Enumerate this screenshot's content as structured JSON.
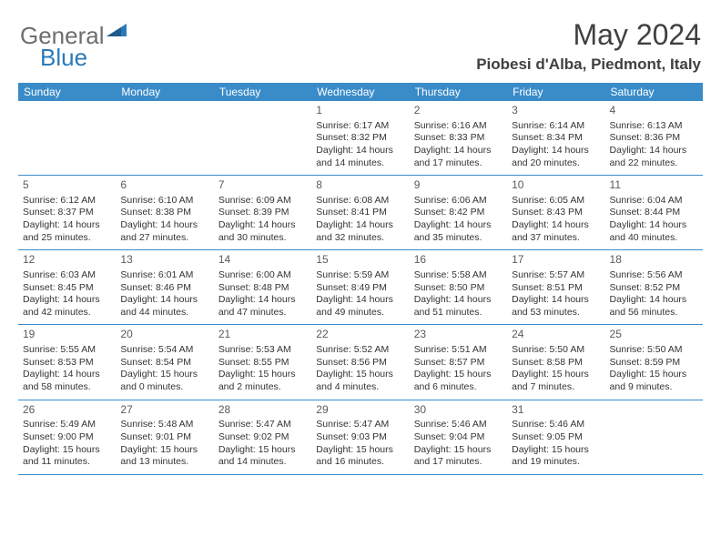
{
  "logo": {
    "part1": "General",
    "part2": "Blue"
  },
  "colors": {
    "header_bg": "#3a8cc9",
    "header_text": "#ffffff",
    "accent": "#2a7ab9",
    "gray": "#6d6e71",
    "title_color": "#404040",
    "row_border": "#3a8cc9"
  },
  "title": "May 2024",
  "location": "Piobesi d'Alba, Piedmont, Italy",
  "day_headers": [
    "Sunday",
    "Monday",
    "Tuesday",
    "Wednesday",
    "Thursday",
    "Friday",
    "Saturday"
  ],
  "weeks": [
    [
      {
        "num": "",
        "info": ""
      },
      {
        "num": "",
        "info": ""
      },
      {
        "num": "",
        "info": ""
      },
      {
        "num": "1",
        "info": "Sunrise: 6:17 AM\nSunset: 8:32 PM\nDaylight: 14 hours and 14 minutes."
      },
      {
        "num": "2",
        "info": "Sunrise: 6:16 AM\nSunset: 8:33 PM\nDaylight: 14 hours and 17 minutes."
      },
      {
        "num": "3",
        "info": "Sunrise: 6:14 AM\nSunset: 8:34 PM\nDaylight: 14 hours and 20 minutes."
      },
      {
        "num": "4",
        "info": "Sunrise: 6:13 AM\nSunset: 8:36 PM\nDaylight: 14 hours and 22 minutes."
      }
    ],
    [
      {
        "num": "5",
        "info": "Sunrise: 6:12 AM\nSunset: 8:37 PM\nDaylight: 14 hours and 25 minutes."
      },
      {
        "num": "6",
        "info": "Sunrise: 6:10 AM\nSunset: 8:38 PM\nDaylight: 14 hours and 27 minutes."
      },
      {
        "num": "7",
        "info": "Sunrise: 6:09 AM\nSunset: 8:39 PM\nDaylight: 14 hours and 30 minutes."
      },
      {
        "num": "8",
        "info": "Sunrise: 6:08 AM\nSunset: 8:41 PM\nDaylight: 14 hours and 32 minutes."
      },
      {
        "num": "9",
        "info": "Sunrise: 6:06 AM\nSunset: 8:42 PM\nDaylight: 14 hours and 35 minutes."
      },
      {
        "num": "10",
        "info": "Sunrise: 6:05 AM\nSunset: 8:43 PM\nDaylight: 14 hours and 37 minutes."
      },
      {
        "num": "11",
        "info": "Sunrise: 6:04 AM\nSunset: 8:44 PM\nDaylight: 14 hours and 40 minutes."
      }
    ],
    [
      {
        "num": "12",
        "info": "Sunrise: 6:03 AM\nSunset: 8:45 PM\nDaylight: 14 hours and 42 minutes."
      },
      {
        "num": "13",
        "info": "Sunrise: 6:01 AM\nSunset: 8:46 PM\nDaylight: 14 hours and 44 minutes."
      },
      {
        "num": "14",
        "info": "Sunrise: 6:00 AM\nSunset: 8:48 PM\nDaylight: 14 hours and 47 minutes."
      },
      {
        "num": "15",
        "info": "Sunrise: 5:59 AM\nSunset: 8:49 PM\nDaylight: 14 hours and 49 minutes."
      },
      {
        "num": "16",
        "info": "Sunrise: 5:58 AM\nSunset: 8:50 PM\nDaylight: 14 hours and 51 minutes."
      },
      {
        "num": "17",
        "info": "Sunrise: 5:57 AM\nSunset: 8:51 PM\nDaylight: 14 hours and 53 minutes."
      },
      {
        "num": "18",
        "info": "Sunrise: 5:56 AM\nSunset: 8:52 PM\nDaylight: 14 hours and 56 minutes."
      }
    ],
    [
      {
        "num": "19",
        "info": "Sunrise: 5:55 AM\nSunset: 8:53 PM\nDaylight: 14 hours and 58 minutes."
      },
      {
        "num": "20",
        "info": "Sunrise: 5:54 AM\nSunset: 8:54 PM\nDaylight: 15 hours and 0 minutes."
      },
      {
        "num": "21",
        "info": "Sunrise: 5:53 AM\nSunset: 8:55 PM\nDaylight: 15 hours and 2 minutes."
      },
      {
        "num": "22",
        "info": "Sunrise: 5:52 AM\nSunset: 8:56 PM\nDaylight: 15 hours and 4 minutes."
      },
      {
        "num": "23",
        "info": "Sunrise: 5:51 AM\nSunset: 8:57 PM\nDaylight: 15 hours and 6 minutes."
      },
      {
        "num": "24",
        "info": "Sunrise: 5:50 AM\nSunset: 8:58 PM\nDaylight: 15 hours and 7 minutes."
      },
      {
        "num": "25",
        "info": "Sunrise: 5:50 AM\nSunset: 8:59 PM\nDaylight: 15 hours and 9 minutes."
      }
    ],
    [
      {
        "num": "26",
        "info": "Sunrise: 5:49 AM\nSunset: 9:00 PM\nDaylight: 15 hours and 11 minutes."
      },
      {
        "num": "27",
        "info": "Sunrise: 5:48 AM\nSunset: 9:01 PM\nDaylight: 15 hours and 13 minutes."
      },
      {
        "num": "28",
        "info": "Sunrise: 5:47 AM\nSunset: 9:02 PM\nDaylight: 15 hours and 14 minutes."
      },
      {
        "num": "29",
        "info": "Sunrise: 5:47 AM\nSunset: 9:03 PM\nDaylight: 15 hours and 16 minutes."
      },
      {
        "num": "30",
        "info": "Sunrise: 5:46 AM\nSunset: 9:04 PM\nDaylight: 15 hours and 17 minutes."
      },
      {
        "num": "31",
        "info": "Sunrise: 5:46 AM\nSunset: 9:05 PM\nDaylight: 15 hours and 19 minutes."
      },
      {
        "num": "",
        "info": ""
      }
    ]
  ]
}
